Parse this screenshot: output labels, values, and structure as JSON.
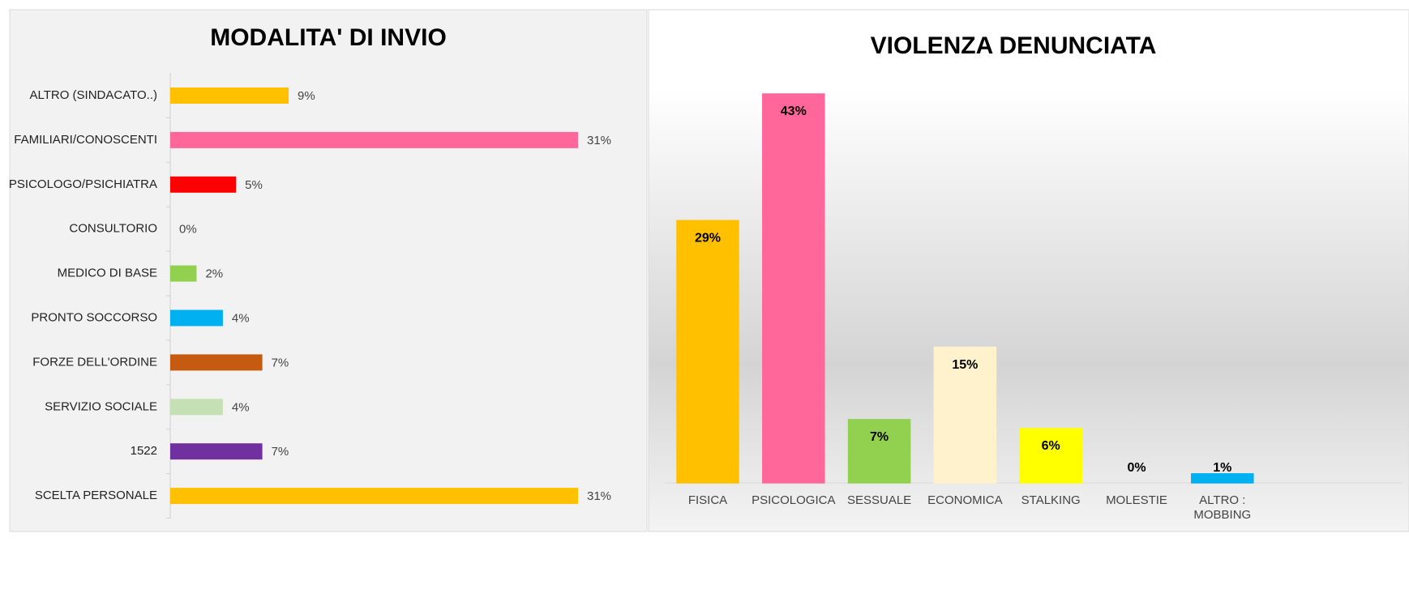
{
  "chart_data": [
    {
      "type": "hbar",
      "title": "MODALITA' DI INVIO",
      "categories": [
        "ALTRO (SINDACATO..)",
        "FAMILIARI/CONOSCENTI",
        "PSICOLOGO/PSICHIATRA",
        "CONSULTORIO",
        "MEDICO DI BASE",
        "PRONTO SOCCORSO",
        "FORZE DELL'ORDINE",
        "SERVIZIO SOCIALE",
        "1522",
        "SCELTA PERSONALE"
      ],
      "values": [
        9,
        31,
        5,
        0,
        2,
        4,
        7,
        4,
        7,
        31
      ],
      "value_labels": [
        "9%",
        "31%",
        "5%",
        "0%",
        "2%",
        "4%",
        "7%",
        "4%",
        "7%",
        "31%"
      ],
      "colors": [
        "#ffc000",
        "#ff6699",
        "#ff0000",
        "#00b050",
        "#92d050",
        "#00b0f0",
        "#c55a11",
        "#c5e0b4",
        "#7030a0",
        "#ffc000"
      ]
    },
    {
      "type": "bar",
      "title": "VIOLENZA DENUNCIATA",
      "categories": [
        "FISICA",
        "PSICOLOGICA",
        "SESSUALE",
        "ECONOMICA",
        "STALKING",
        "MOLESTIE",
        "ALTRO : MOBBING"
      ],
      "values": [
        29,
        43,
        7,
        15,
        6,
        0,
        1
      ],
      "value_labels": [
        "29%",
        "43%",
        "7%",
        "15%",
        "6%",
        "0%",
        "1%"
      ],
      "colors": [
        "#ffc000",
        "#ff6699",
        "#92d050",
        "#fff2cc",
        "#ffff00",
        "#a6a6a6",
        "#00b0f0"
      ]
    }
  ]
}
